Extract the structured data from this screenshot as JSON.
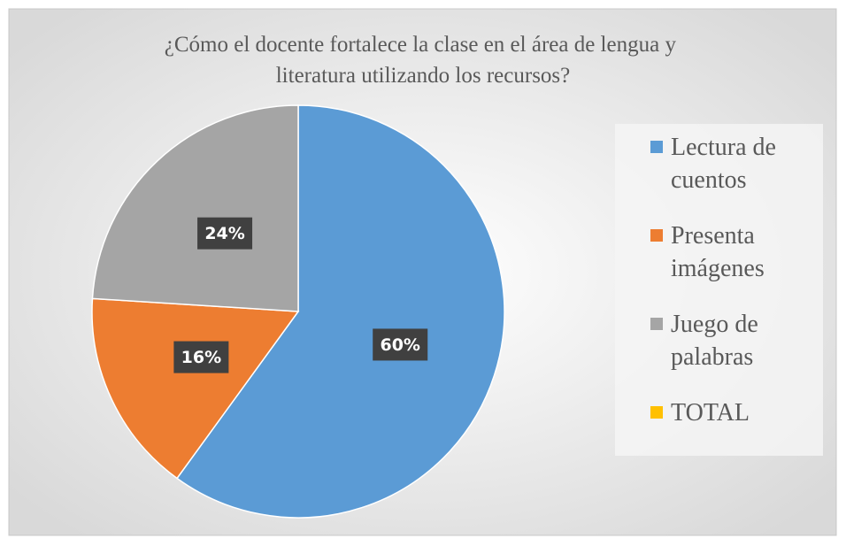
{
  "chart_data": {
    "type": "pie",
    "title": "¿Cómo el docente fortalece la clase en el área de lengua y literatura utilizando los recursos?",
    "categories": [
      "Lectura de cuentos",
      "Presenta imágenes",
      "Juego de palabras",
      "TOTAL"
    ],
    "values": [
      60,
      16,
      24,
      0
    ],
    "value_labels": [
      "60%",
      "16%",
      "24%",
      null
    ],
    "colors": [
      "#5b9bd5",
      "#ed7d31",
      "#a5a5a5",
      "#ffc000"
    ],
    "legend": "right"
  }
}
